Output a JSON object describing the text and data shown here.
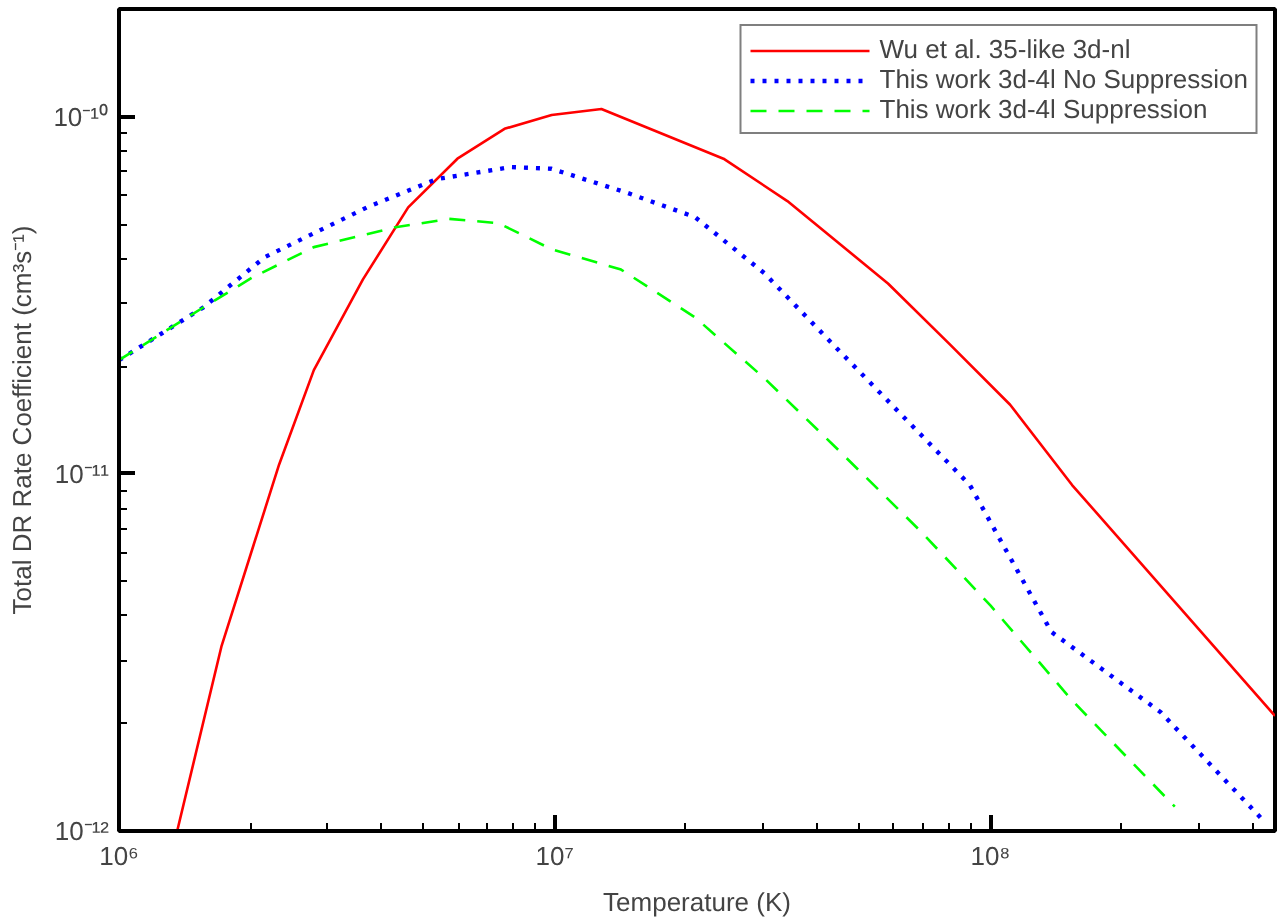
{
  "chart_data": {
    "type": "line",
    "xlabel": "Temperature (K)",
    "ylabel": "Total DR Rate Coefficient (cm³s⁻¹)",
    "log": "xy",
    "grid": false,
    "legend": "top right",
    "xlim": [
      1000000,
      450000000
    ],
    "ylim": [
      1e-12,
      2e-10
    ],
    "xticks": [
      {
        "value": 1000000,
        "label": "10⁶"
      },
      {
        "value": 2000000,
        "label": null
      },
      {
        "value": 3000000,
        "label": null
      },
      {
        "value": 4000000,
        "label": null
      },
      {
        "value": 5000000,
        "label": null
      },
      {
        "value": 6000000,
        "label": null
      },
      {
        "value": 7000000,
        "label": null
      },
      {
        "value": 8000000,
        "label": null
      },
      {
        "value": 9000000,
        "label": null
      },
      {
        "value": 10000000,
        "label": "10⁷"
      },
      {
        "value": 20000000,
        "label": null
      },
      {
        "value": 30000000,
        "label": null
      },
      {
        "value": 40000000,
        "label": null
      },
      {
        "value": 50000000,
        "label": null
      },
      {
        "value": 60000000,
        "label": null
      },
      {
        "value": 70000000,
        "label": null
      },
      {
        "value": 80000000,
        "label": null
      },
      {
        "value": 90000000,
        "label": null
      },
      {
        "value": 100000000,
        "label": "10⁸"
      },
      {
        "value": 200000000,
        "label": null
      },
      {
        "value": 300000000,
        "label": null
      },
      {
        "value": 400000000,
        "label": null
      }
    ],
    "yticks": [
      {
        "value": 1e-12,
        "label": "10⁻¹²"
      },
      {
        "value": 2e-12,
        "label": null
      },
      {
        "value": 3e-12,
        "label": null
      },
      {
        "value": 4e-12,
        "label": null
      },
      {
        "value": 5e-12,
        "label": null
      },
      {
        "value": 6e-12,
        "label": null
      },
      {
        "value": 7e-12,
        "label": null
      },
      {
        "value": 8e-12,
        "label": null
      },
      {
        "value": 9e-12,
        "label": null
      },
      {
        "value": 1e-11,
        "label": "10⁻¹¹"
      },
      {
        "value": 2e-11,
        "label": null
      },
      {
        "value": 3e-11,
        "label": null
      },
      {
        "value": 4e-11,
        "label": null
      },
      {
        "value": 5e-11,
        "label": null
      },
      {
        "value": 6e-11,
        "label": null
      },
      {
        "value": 7e-11,
        "label": null
      },
      {
        "value": 8e-11,
        "label": null
      },
      {
        "value": 9e-11,
        "label": null
      },
      {
        "value": 1e-10,
        "label": "10⁻¹⁰"
      }
    ],
    "series": [
      {
        "name": "Wu et al. 35-like 3d-nl",
        "color": "#ff0000",
        "line_style": "solid",
        "x": [
          1360000,
          1720000,
          2330000,
          2800000,
          3630000,
          4610000,
          5980000,
          7670000,
          9840000,
          12800000,
          24400000,
          34200000,
          58200000,
          80500000,
          111000000,
          154000000,
          450000000
        ],
        "values": [
          1e-12,
          3.3e-12,
          1.06e-11,
          1.95e-11,
          3.5e-11,
          5.57e-11,
          7.62e-11,
          9.24e-11,
          1.01e-10,
          1.05e-10,
          7.62e-11,
          5.8e-11,
          3.41e-11,
          2.31e-11,
          1.56e-11,
          9.3e-12,
          2.1e-12
        ]
      },
      {
        "name": "This work 3d-4l No Suppression",
        "color": "#0000ff",
        "line_style": "dotted",
        "x": [
          1000000,
          1560000,
          2160000,
          3710000,
          5360000,
          7930000,
          9840000,
          14700000,
          21000000,
          30300000,
          43400000,
          89700000,
          138000000,
          246000000,
          423000000
        ],
        "values": [
          2.08e-11,
          2.92e-11,
          4.04e-11,
          5.57e-11,
          6.68e-11,
          7.22e-11,
          7.14e-11,
          6.11e-11,
          5.23e-11,
          3.64e-11,
          2.31e-11,
          9.3e-12,
          3.61e-12,
          2.15e-12,
          1.07e-12
        ]
      },
      {
        "name": "This work 3d-4l Suppression",
        "color": "#00ff00",
        "line_style": "dashed",
        "x": [
          1000000,
          1560000,
          2020000,
          2800000,
          4310000,
          5730000,
          7430000,
          9840000,
          14200000,
          21000000,
          30300000,
          43400000,
          69200000,
          100000000,
          154000000,
          265000000
        ],
        "values": [
          2.08e-11,
          2.92e-11,
          3.54e-11,
          4.31e-11,
          4.9e-11,
          5.17e-11,
          5.03e-11,
          4.25e-11,
          3.73e-11,
          2.74e-11,
          1.85e-11,
          1.21e-11,
          6.9e-12,
          4.28e-12,
          2.32e-12,
          1.17e-12
        ]
      }
    ]
  }
}
